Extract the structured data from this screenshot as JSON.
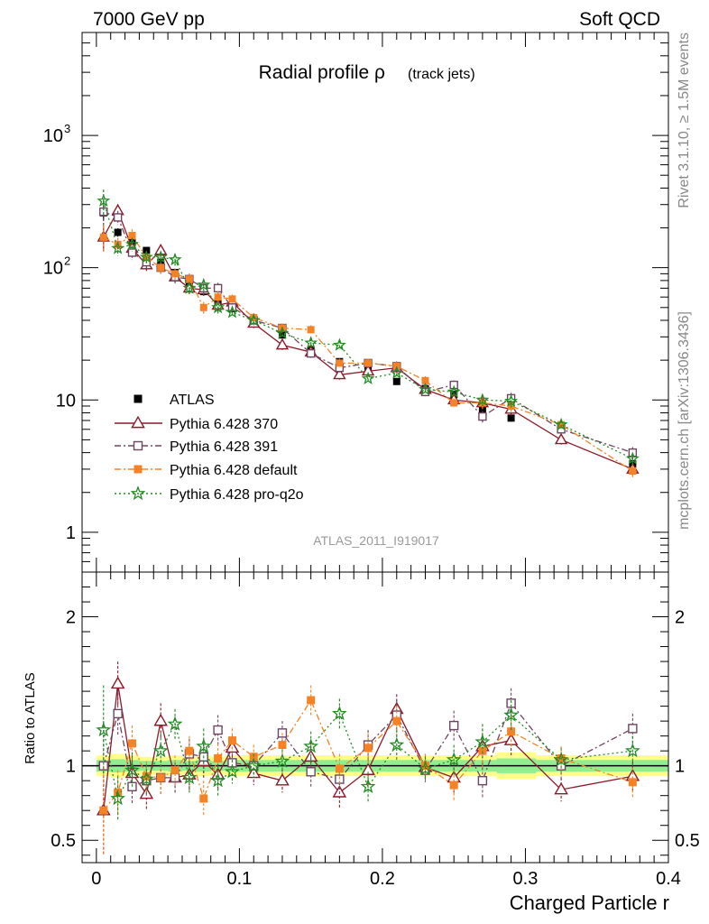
{
  "header": {
    "left": "7000 GeV pp",
    "right": "Soft QCD"
  },
  "side_labels": {
    "rivet": "Rivet 3.1.10, ≥ 1.5M events",
    "mcplots": "mcplots.cern.ch [arXiv:1306.3436]"
  },
  "chart_data": {
    "type": "scatter",
    "title": "Radial profile ρ",
    "title_suffix": "(track jets)",
    "xlabel": "Charged Particle r",
    "ylabel_ratio": "Ratio to ATLAS",
    "watermark": "ATLAS_2011_I919017",
    "xlim": [
      -0.01,
      0.4
    ],
    "ylim": [
      0.5,
      6000
    ],
    "yscale": "log",
    "ratio_ylim": [
      0.35,
      2.3
    ],
    "x_ticks": [
      {
        "v": 0,
        "label": "0"
      },
      {
        "v": 0.1,
        "label": "0.1"
      },
      {
        "v": 0.2,
        "label": "0.2"
      },
      {
        "v": 0.3,
        "label": "0.3"
      },
      {
        "v": 0.4,
        "label": "0.4"
      }
    ],
    "y_ticks": [
      {
        "v": 1,
        "label": "1"
      },
      {
        "v": 10,
        "label": "10"
      },
      {
        "v": 100,
        "label": "10",
        "sup": "2"
      },
      {
        "v": 1000,
        "label": "10",
        "sup": "3"
      }
    ],
    "ratio_ticks": [
      {
        "v": 0.5,
        "label": "0.5"
      },
      {
        "v": 1,
        "label": "1"
      },
      {
        "v": 2,
        "label": "2"
      }
    ],
    "legend_position": "middle-left",
    "x": [
      0.005,
      0.015,
      0.025,
      0.035,
      0.045,
      0.055,
      0.065,
      0.075,
      0.085,
      0.095,
      0.11,
      0.13,
      0.15,
      0.17,
      0.19,
      0.21,
      0.23,
      0.25,
      0.27,
      0.29,
      0.325,
      0.375
    ],
    "series": [
      {
        "name": "ATLAS",
        "color": "#000000",
        "marker": "filled-square",
        "line": "none",
        "values": [
          260,
          185,
          155,
          135,
          110,
          92,
          76,
          66,
          56,
          49,
          40,
          31,
          24,
          19.5,
          17,
          13.8,
          12.2,
          11,
          8.5,
          7.3,
          6.2,
          3.3
        ]
      },
      {
        "name": "Pythia 6.428 370",
        "color": "#8b1a2a",
        "marker": "open-triangle",
        "line": "solid",
        "values": [
          170,
          270,
          140,
          105,
          135,
          85,
          70,
          68,
          52,
          55,
          38,
          26,
          23,
          15.5,
          16.5,
          17.5,
          12,
          10,
          9.5,
          8.5,
          5,
          3
        ]
      },
      {
        "name": "Pythia 6.428 391",
        "color": "#6e4560",
        "marker": "open-square",
        "line": "dashdot",
        "values": [
          265,
          240,
          130,
          110,
          100,
          85,
          82,
          70,
          70,
          50,
          40,
          35,
          22.5,
          17.5,
          19,
          18,
          11.5,
          13,
          7.5,
          10.3,
          6,
          4
        ]
      },
      {
        "name": "Pythia 6.428 default",
        "color": "#f58225",
        "marker": "filled-square",
        "line": "dashdot",
        "values": [
          170,
          150,
          175,
          120,
          100,
          90,
          82,
          50,
          60,
          58,
          42,
          35,
          34,
          19,
          19,
          18,
          14,
          9.5,
          9.5,
          9,
          6.5,
          2.9
        ]
      },
      {
        "name": "Pythia 6.428 pro-q2o",
        "color": "#228b22",
        "marker": "star",
        "line": "dotted",
        "values": [
          320,
          140,
          150,
          120,
          120,
          115,
          70,
          74,
          50,
          46,
          40,
          32,
          27,
          26,
          14.5,
          16,
          12,
          11.5,
          10,
          9.8,
          6.5,
          3.6
        ]
      }
    ],
    "ratios": [
      {
        "name": "Pythia 6.428 370",
        "values": [
          0.7,
          1.55,
          0.95,
          0.81,
          1.3,
          0.92,
          0.94,
          1.03,
          0.94,
          1.12,
          0.95,
          0.9,
          1.06,
          0.82,
          0.97,
          1.38,
          0.99,
          0.92,
          1.13,
          1.17,
          0.84,
          0.93
        ]
      },
      {
        "name": "Pythia 6.428 391",
        "values": [
          1.0,
          1.35,
          0.86,
          0.9,
          0.92,
          0.92,
          1.08,
          1.06,
          1.24,
          1.02,
          1.0,
          1.22,
          0.96,
          0.91,
          1.14,
          1.34,
          0.97,
          1.27,
          0.9,
          1.42,
          1.0,
          1.25
        ]
      },
      {
        "name": "Pythia 6.428 default",
        "values": [
          0.7,
          0.82,
          1.15,
          0.93,
          0.92,
          0.97,
          1.1,
          0.78,
          1.05,
          1.17,
          1.06,
          1.14,
          1.44,
          0.98,
          1.12,
          1.3,
          1.0,
          0.87,
          1.1,
          1.23,
          1.05,
          0.89
        ]
      },
      {
        "name": "Pythia 6.428 pro-q2o",
        "values": [
          1.24,
          0.78,
          0.97,
          0.91,
          1.1,
          1.28,
          0.92,
          1.13,
          0.9,
          0.96,
          1.0,
          1.03,
          1.13,
          1.35,
          0.86,
          1.14,
          0.98,
          1.04,
          1.16,
          1.34,
          1.04,
          1.1
        ]
      }
    ]
  }
}
